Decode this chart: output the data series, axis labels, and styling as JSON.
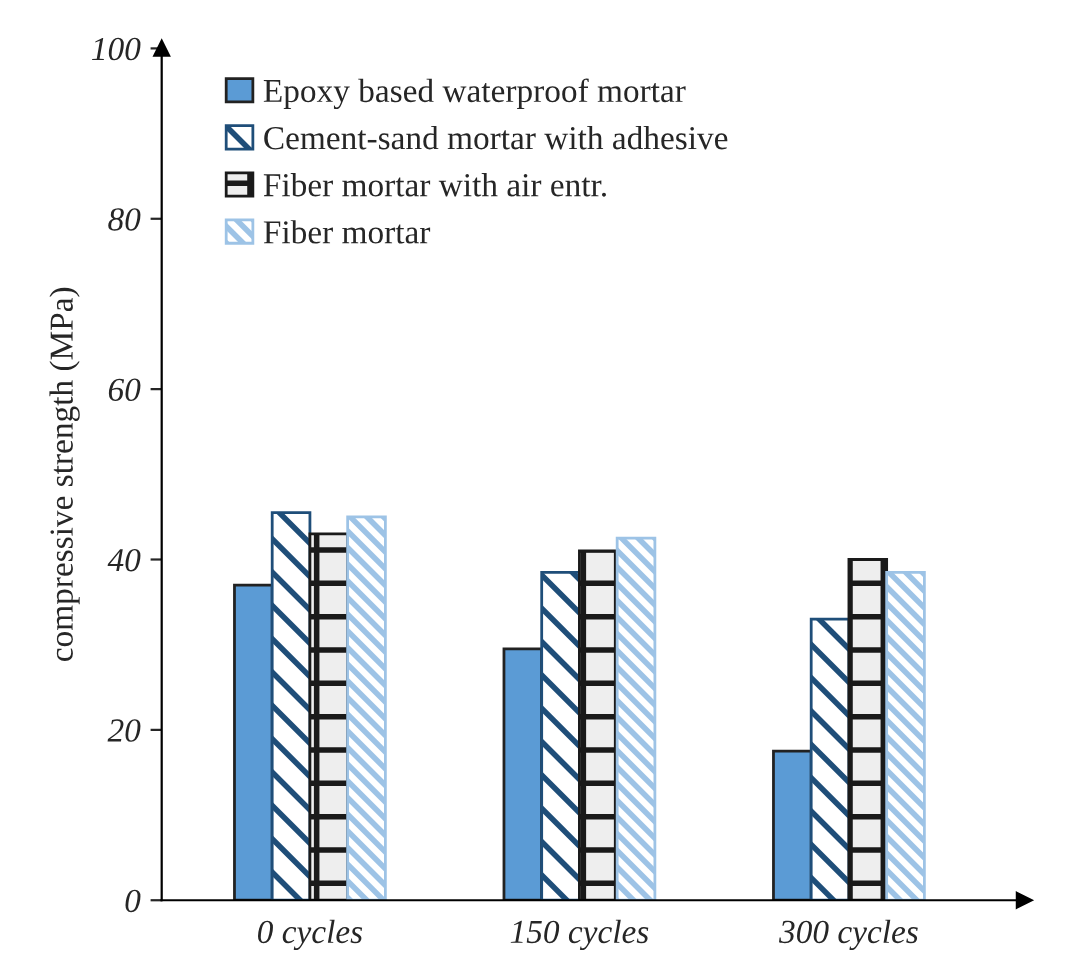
{
  "chart_data": {
    "type": "bar",
    "ylabel": "compressive strength (MPa)",
    "categories": [
      "0 cycles",
      "150 cycles",
      "300 cycles"
    ],
    "series": [
      {
        "name": "Epoxy based waterproof mortar",
        "color": "#5b9bd5",
        "values": [
          37,
          29.5,
          17.5
        ]
      },
      {
        "name": "Cement-sand mortar with adhesive",
        "color": "#1f4e79",
        "values": [
          45.5,
          38.5,
          33
        ]
      },
      {
        "name": "Fiber mortar with air entr.",
        "color": "#1a1a1a",
        "values": [
          43,
          41,
          40
        ]
      },
      {
        "name": "Fiber mortar",
        "color": "#9dc3e6",
        "values": [
          45,
          42.5,
          38.5
        ]
      }
    ],
    "ylim": [
      0,
      100
    ],
    "yticks": [
      0,
      20,
      40,
      60,
      80,
      100
    ],
    "grid": false,
    "legend": "top left"
  }
}
